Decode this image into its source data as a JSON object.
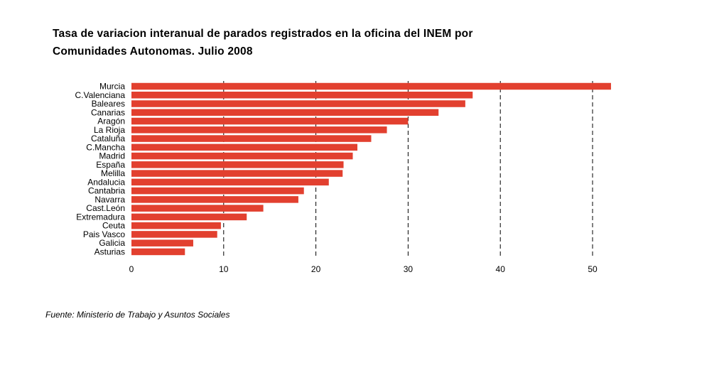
{
  "title_lines": [
    "Tasa de variacion interanual de parados registrados en la oficina del INEM por",
    "Comunidades Autonomas. Julio 2008"
  ],
  "source": "Fuente: Ministerio de Trabajo y Asuntos Sociales",
  "colors": {
    "bar": "#e2402f",
    "grid": "#000000",
    "text": "#000000"
  },
  "chart_data": {
    "type": "bar",
    "orientation": "horizontal",
    "title": "Tasa de variacion interanual de parados registrados en la oficina del INEM por Comunidades Autonomas. Julio 2008",
    "categories": [
      "Murcia",
      "C.Valenciana",
      "Baleares",
      "Canarias",
      "Aragón",
      "La Rioja",
      "Cataluña",
      "C.Mancha",
      "Madrid",
      "España",
      "Melilla",
      "Andalucia",
      "Cantabria",
      "Navarra",
      "Cast.León",
      "Extremadura",
      "Ceuta",
      "Pais Vasco",
      "Galicia",
      "Asturias"
    ],
    "values": [
      52.0,
      37.0,
      36.2,
      33.3,
      30.0,
      27.7,
      26.0,
      24.5,
      24.0,
      23.0,
      22.9,
      21.4,
      18.7,
      18.1,
      14.3,
      12.5,
      9.7,
      9.3,
      6.7,
      5.8
    ],
    "xlim": [
      0,
      52
    ],
    "xticks": [
      "0",
      "10",
      "20",
      "30",
      "40",
      "50"
    ],
    "grid": "vertical dashed",
    "xlabel": "",
    "ylabel": ""
  }
}
